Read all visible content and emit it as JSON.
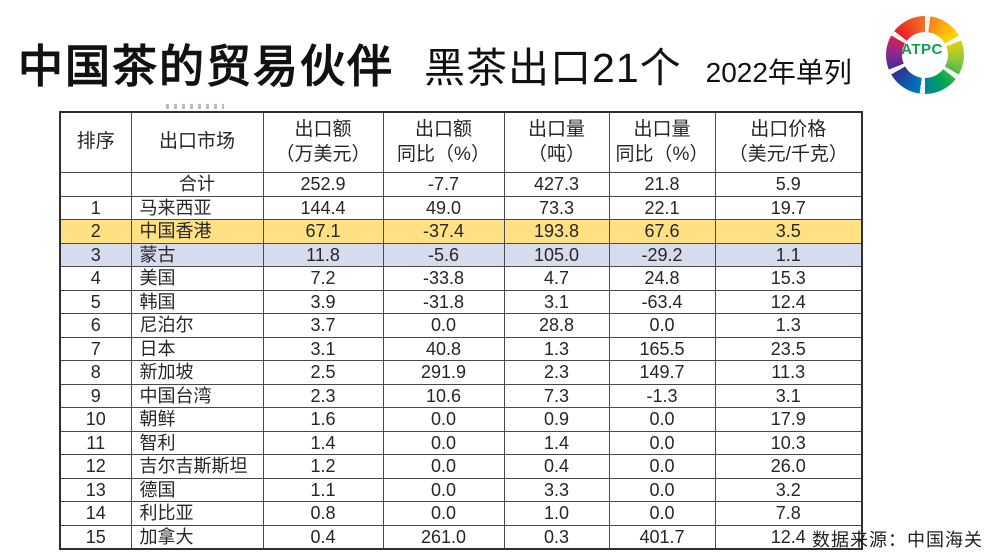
{
  "slide": {
    "title_main": "中国茶的贸易伙伴",
    "title_sub": "黑茶出口21个",
    "title_note": "2022年单列",
    "source": "数据来源：中国海关",
    "logo_text": "ATPC"
  },
  "colors": {
    "highlight_yellow": "#FFE082",
    "highlight_lavender": "#D6DBEE",
    "logo_green": "#0E9E4E",
    "table_border": "#4A4A4A"
  },
  "table": {
    "headers": [
      [
        "排序"
      ],
      [
        "出口市场"
      ],
      [
        "出口额",
        "（万美元）"
      ],
      [
        "出口额",
        "同比（%）"
      ],
      [
        "出口量",
        "（吨）"
      ],
      [
        "出口量",
        "同比（%）"
      ],
      [
        "出口价格",
        "（美元/千克）"
      ]
    ],
    "rows": [
      {
        "rank": "",
        "market": "合计",
        "market_center": true,
        "highlight": "none",
        "values": [
          "252.9",
          "-7.7",
          "427.3",
          "21.8",
          "5.9"
        ]
      },
      {
        "rank": "1",
        "market": "马来西亚",
        "market_center": false,
        "highlight": "none",
        "values": [
          "144.4",
          "49.0",
          "73.3",
          "22.1",
          "19.7"
        ]
      },
      {
        "rank": "2",
        "market": "中国香港",
        "market_center": false,
        "highlight": "yellow",
        "values": [
          "67.1",
          "-37.4",
          "193.8",
          "67.6",
          "3.5"
        ]
      },
      {
        "rank": "3",
        "market": "蒙古",
        "market_center": false,
        "highlight": "blue",
        "values": [
          "11.8",
          "-5.6",
          "105.0",
          "-29.2",
          "1.1"
        ]
      },
      {
        "rank": "4",
        "market": "美国",
        "market_center": false,
        "highlight": "none",
        "values": [
          "7.2",
          "-33.8",
          "4.7",
          "24.8",
          "15.3"
        ]
      },
      {
        "rank": "5",
        "market": "韩国",
        "market_center": false,
        "highlight": "none",
        "values": [
          "3.9",
          "-31.8",
          "3.1",
          "-63.4",
          "12.4"
        ]
      },
      {
        "rank": "6",
        "market": "尼泊尔",
        "market_center": false,
        "highlight": "none",
        "values": [
          "3.7",
          "0.0",
          "28.8",
          "0.0",
          "1.3"
        ]
      },
      {
        "rank": "7",
        "market": "日本",
        "market_center": false,
        "highlight": "none",
        "values": [
          "3.1",
          "40.8",
          "1.3",
          "165.5",
          "23.5"
        ]
      },
      {
        "rank": "8",
        "market": "新加坡",
        "market_center": false,
        "highlight": "none",
        "values": [
          "2.5",
          "291.9",
          "2.3",
          "149.7",
          "11.3"
        ]
      },
      {
        "rank": "9",
        "market": "中国台湾",
        "market_center": false,
        "highlight": "none",
        "values": [
          "2.3",
          "10.6",
          "7.3",
          "-1.3",
          "3.1"
        ]
      },
      {
        "rank": "10",
        "market": "朝鲜",
        "market_center": false,
        "highlight": "none",
        "values": [
          "1.6",
          "0.0",
          "0.9",
          "0.0",
          "17.9"
        ]
      },
      {
        "rank": "11",
        "market": "智利",
        "market_center": false,
        "highlight": "none",
        "values": [
          "1.4",
          "0.0",
          "1.4",
          "0.0",
          "10.3"
        ]
      },
      {
        "rank": "12",
        "market": "吉尔吉斯斯坦",
        "market_center": false,
        "highlight": "none",
        "values": [
          "1.2",
          "0.0",
          "0.4",
          "0.0",
          "26.0"
        ]
      },
      {
        "rank": "13",
        "market": "德国",
        "market_center": false,
        "highlight": "none",
        "values": [
          "1.1",
          "0.0",
          "3.3",
          "0.0",
          "3.2"
        ]
      },
      {
        "rank": "14",
        "market": "利比亚",
        "market_center": false,
        "highlight": "none",
        "values": [
          "0.8",
          "0.0",
          "1.0",
          "0.0",
          "7.8"
        ]
      },
      {
        "rank": "15",
        "market": "加拿大",
        "market_center": false,
        "highlight": "none",
        "values": [
          "0.4",
          "261.0",
          "0.3",
          "401.7",
          "12.4"
        ]
      }
    ]
  }
}
